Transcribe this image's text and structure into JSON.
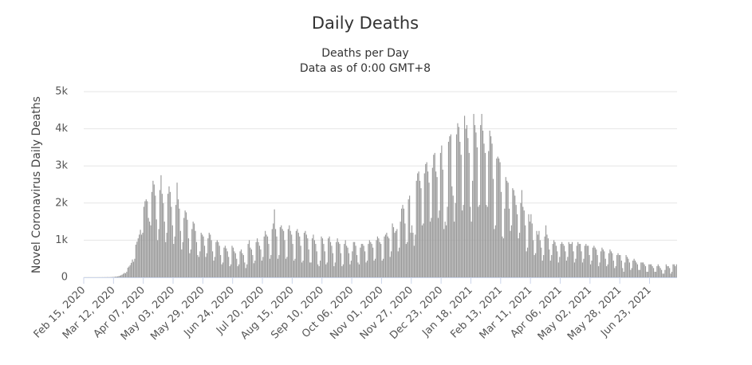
{
  "chart_data": {
    "type": "bar",
    "title": "Daily Deaths",
    "subtitle": [
      "Deaths per Day",
      "Data as of 0:00 GMT+8"
    ],
    "y_label": "Novel Coronavirus Daily Deaths",
    "color": "#9a9a9a",
    "grid": true,
    "ylim": [
      0,
      5000
    ],
    "yticks": [
      0,
      {
        "value": 1000,
        "label": "1k"
      },
      {
        "value": 2000,
        "label": "2k"
      },
      {
        "value": 3000,
        "label": "3k"
      },
      {
        "value": 4000,
        "label": "4k"
      },
      {
        "value": 5000,
        "label": "5k"
      }
    ],
    "categories": [
      "Feb 15, 2020",
      null,
      null,
      null,
      null,
      null,
      null,
      null,
      null,
      null,
      null,
      null,
      null,
      null,
      null,
      null,
      null,
      null,
      null,
      null,
      null,
      null,
      null,
      null,
      null,
      null,
      "Mar 12, 2020",
      null,
      null,
      null,
      null,
      null,
      null,
      null,
      null,
      null,
      null,
      null,
      null,
      null,
      null,
      null,
      null,
      null,
      null,
      null,
      null,
      null,
      null,
      null,
      null,
      null,
      "Apr 07, 2020",
      null,
      null,
      null,
      null,
      null,
      null,
      null,
      null,
      null,
      null,
      null,
      null,
      null,
      null,
      null,
      null,
      null,
      null,
      null,
      null,
      null,
      null,
      null,
      null,
      null,
      "May 03, 2020",
      null,
      null,
      null,
      null,
      null,
      null,
      null,
      null,
      null,
      null,
      null,
      null,
      null,
      null,
      null,
      null,
      null,
      null,
      null,
      null,
      null,
      null,
      null,
      null,
      null,
      "May 29, 2020",
      null,
      null,
      null,
      null,
      null,
      null,
      null,
      null,
      null,
      null,
      null,
      null,
      null,
      null,
      null,
      null,
      null,
      null,
      null,
      null,
      null,
      null,
      null,
      null,
      null,
      "Jun 24, 2020",
      null,
      null,
      null,
      null,
      null,
      null,
      null,
      null,
      null,
      null,
      null,
      null,
      null,
      null,
      null,
      null,
      null,
      null,
      null,
      null,
      null,
      null,
      null,
      null,
      null,
      "Jul 20, 2020",
      null,
      null,
      null,
      null,
      null,
      null,
      null,
      null,
      null,
      null,
      null,
      null,
      null,
      null,
      null,
      null,
      null,
      null,
      null,
      null,
      null,
      null,
      null,
      null,
      null,
      "Aug 15, 2020",
      null,
      null,
      null,
      null,
      null,
      null,
      null,
      null,
      null,
      null,
      null,
      null,
      null,
      null,
      null,
      null,
      null,
      null,
      null,
      null,
      null,
      null,
      null,
      null,
      null,
      "Sep 10, 2020",
      null,
      null,
      null,
      null,
      null,
      null,
      null,
      null,
      null,
      null,
      null,
      null,
      null,
      null,
      null,
      null,
      null,
      null,
      null,
      null,
      null,
      null,
      null,
      null,
      null,
      "Oct 06, 2020",
      null,
      null,
      null,
      null,
      null,
      null,
      null,
      null,
      null,
      null,
      null,
      null,
      null,
      null,
      null,
      null,
      null,
      null,
      null,
      null,
      null,
      null,
      null,
      null,
      null,
      "Nov 01, 2020",
      null,
      null,
      null,
      null,
      null,
      null,
      null,
      null,
      null,
      null,
      null,
      null,
      null,
      null,
      null,
      null,
      null,
      null,
      null,
      null,
      null,
      null,
      null,
      null,
      null,
      "Nov 27, 2020",
      null,
      null,
      null,
      null,
      null,
      null,
      null,
      null,
      null,
      null,
      null,
      null,
      null,
      null,
      null,
      null,
      null,
      null,
      null,
      null,
      null,
      null,
      null,
      null,
      null,
      "Dec 23, 2020",
      null,
      null,
      null,
      null,
      null,
      null,
      null,
      null,
      null,
      null,
      null,
      null,
      null,
      null,
      null,
      null,
      null,
      null,
      null,
      null,
      null,
      null,
      null,
      null,
      null,
      "Jan 18, 2021",
      null,
      null,
      null,
      null,
      null,
      null,
      null,
      null,
      null,
      null,
      null,
      null,
      null,
      null,
      null,
      null,
      null,
      null,
      null,
      null,
      null,
      null,
      null,
      null,
      null,
      "Feb 13, 2021",
      null,
      null,
      null,
      null,
      null,
      null,
      null,
      null,
      null,
      null,
      null,
      null,
      null,
      null,
      null,
      null,
      null,
      null,
      null,
      null,
      null,
      null,
      null,
      null,
      null,
      "Mar 11, 2021",
      null,
      null,
      null,
      null,
      null,
      null,
      null,
      null,
      null,
      null,
      null,
      null,
      null,
      null,
      null,
      null,
      null,
      null,
      null,
      null,
      null,
      null,
      null,
      null,
      null,
      "Apr 06, 2021",
      null,
      null,
      null,
      null,
      null,
      null,
      null,
      null,
      null,
      null,
      null,
      null,
      null,
      null,
      null,
      null,
      null,
      null,
      null,
      null,
      null,
      null,
      null,
      null,
      null,
      "May 02, 2021",
      null,
      null,
      null,
      null,
      null,
      null,
      null,
      null,
      null,
      null,
      null,
      null,
      null,
      null,
      null,
      null,
      null,
      null,
      null,
      null,
      null,
      null,
      null,
      null,
      null,
      "May 28, 2021",
      null,
      null,
      null,
      null,
      null,
      null,
      null,
      null,
      null,
      null,
      null,
      null,
      null,
      null,
      null,
      null,
      null,
      null,
      null,
      null,
      null,
      null,
      null,
      null,
      null,
      "Jun 23, 2021",
      null,
      null,
      null,
      null,
      null,
      null,
      null,
      null,
      null,
      null,
      null,
      null,
      null,
      null,
      null,
      null,
      null,
      null,
      null,
      null,
      null,
      null,
      null
    ],
    "values": [
      0,
      0,
      0,
      0,
      1,
      0,
      0,
      0,
      0,
      0,
      0,
      0,
      1,
      1,
      1,
      1,
      2,
      1,
      3,
      2,
      4,
      4,
      3,
      5,
      8,
      9,
      12,
      17,
      20,
      25,
      31,
      43,
      56,
      72,
      95,
      120,
      110,
      150,
      260,
      290,
      330,
      390,
      480,
      420,
      500,
      880,
      960,
      1050,
      1150,
      1280,
      1150,
      1200,
      1900,
      2050,
      2100,
      2050,
      1600,
      1500,
      1400,
      2300,
      2600,
      2500,
      2200,
      1560,
      1000,
      1300,
      2350,
      2750,
      2250,
      2000,
      1500,
      950,
      1200,
      2250,
      2450,
      2300,
      1900,
      1400,
      900,
      1100,
      1950,
      2550,
      2100,
      1850,
      1250,
      750,
      950,
      1600,
      1800,
      1750,
      1550,
      1050,
      650,
      750,
      1300,
      1500,
      1450,
      1250,
      950,
      600,
      550,
      700,
      1200,
      1150,
      1100,
      850,
      550,
      650,
      1050,
      1200,
      1150,
      1000,
      700,
      450,
      550,
      950,
      1000,
      950,
      850,
      600,
      350,
      400,
      800,
      850,
      780,
      700,
      550,
      300,
      350,
      850,
      800,
      700,
      650,
      500,
      300,
      350,
      700,
      750,
      650,
      600,
      400,
      250,
      350,
      900,
      1000,
      800,
      750,
      600,
      380,
      450,
      950,
      1050,
      950,
      850,
      750,
      450,
      550,
      1100,
      1250,
      1150,
      1100,
      900,
      500,
      600,
      1300,
      1450,
      1830,
      1300,
      1100,
      500,
      600,
      1350,
      1400,
      1300,
      1250,
      1000,
      500,
      550,
      1300,
      1400,
      1250,
      1150,
      900,
      450,
      500,
      1250,
      1300,
      1200,
      1100,
      850,
      400,
      450,
      1200,
      1250,
      1150,
      1050,
      750,
      400,
      400,
      1050,
      1150,
      1000,
      900,
      700,
      350,
      300,
      450,
      1100,
      1050,
      900,
      700,
      350,
      400,
      1050,
      1100,
      950,
      850,
      650,
      300,
      400,
      950,
      1050,
      950,
      900,
      650,
      300,
      350,
      900,
      1000,
      850,
      800,
      650,
      350,
      450,
      700,
      950,
      950,
      850,
      600,
      400,
      350,
      800,
      900,
      900,
      850,
      700,
      400,
      450,
      900,
      1000,
      950,
      900,
      800,
      450,
      500,
      1000,
      1100,
      1050,
      950,
      900,
      450,
      500,
      1100,
      1150,
      1200,
      1100,
      1050,
      550,
      700,
      1450,
      1350,
      1200,
      1250,
      1300,
      700,
      800,
      1500,
      1850,
      1950,
      1850,
      1450,
      900,
      950,
      2100,
      2200,
      1200,
      1400,
      1200,
      850,
      1150,
      2600,
      2800,
      2850,
      2600,
      2400,
      1400,
      1450,
      2800,
      3050,
      3100,
      2850,
      2550,
      1500,
      1600,
      2950,
      3300,
      3350,
      2850,
      2700,
      1600,
      1800,
      3350,
      3550,
      2900,
      1300,
      1500,
      1400,
      1900,
      3650,
      3800,
      3850,
      2450,
      2200,
      1500,
      2000,
      3850,
      4150,
      4050,
      3650,
      3300,
      1800,
      1950,
      4350,
      4000,
      4100,
      3750,
      3350,
      1900,
      1500,
      2600,
      4400,
      4100,
      3900,
      3500,
      1900,
      1950,
      4100,
      4400,
      3950,
      3600,
      3350,
      1950,
      1900,
      3400,
      3950,
      3800,
      3600,
      2650,
      1300,
      1400,
      3200,
      3250,
      3200,
      3100,
      2300,
      1100,
      1050,
      1850,
      2700,
      2600,
      2550,
      1850,
      1250,
      1400,
      2400,
      2350,
      2200,
      1950,
      1700,
      1050,
      1200,
      2000,
      2350,
      1900,
      1800,
      1400,
      700,
      800,
      1700,
      1500,
      1700,
      1450,
      1000,
      600,
      650,
      1250,
      1150,
      1250,
      1000,
      800,
      450,
      600,
      1100,
      1400,
      1150,
      1050,
      750,
      450,
      600,
      900,
      1000,
      950,
      850,
      700,
      400,
      550,
      900,
      950,
      900,
      850,
      700,
      450,
      550,
      950,
      900,
      900,
      950,
      700,
      400,
      500,
      850,
      950,
      900,
      900,
      700,
      400,
      500,
      850,
      900,
      850,
      850,
      600,
      350,
      450,
      800,
      850,
      800,
      750,
      600,
      300,
      400,
      700,
      800,
      750,
      700,
      500,
      300,
      350,
      650,
      750,
      700,
      650,
      450,
      250,
      300,
      600,
      650,
      600,
      600,
      450,
      250,
      150,
      400,
      600,
      550,
      500,
      400,
      200,
      250,
      450,
      500,
      450,
      400,
      350,
      200,
      200,
      400,
      400,
      400,
      350,
      300,
      150,
      150,
      350,
      350,
      350,
      300,
      250,
      150,
      150,
      300,
      350,
      300,
      250,
      200,
      100,
      100,
      200,
      350,
      300,
      300,
      250,
      100,
      150,
      350,
      350,
      300,
      350
    ]
  }
}
